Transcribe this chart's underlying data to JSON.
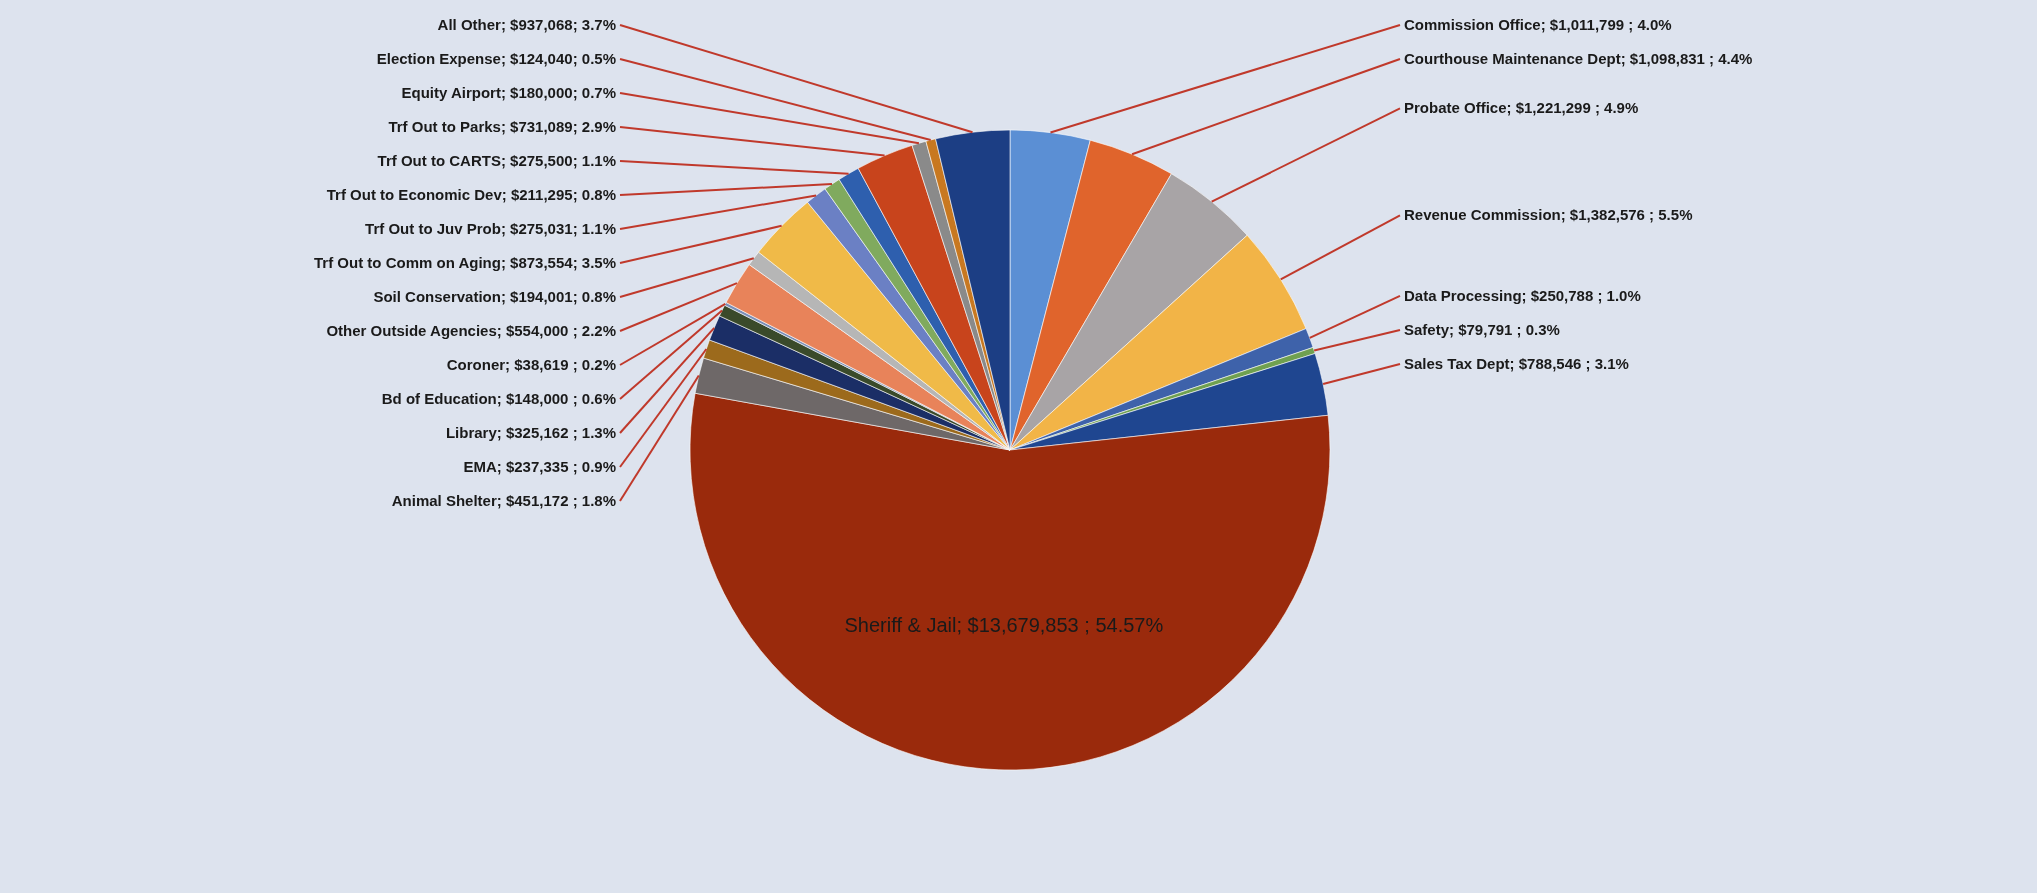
{
  "chart_data": {
    "type": "pie",
    "categories": [
      "Commission Office",
      "Courthouse Maintenance Dept",
      "Probate Office",
      "Revenue Commission",
      "Data Processing",
      "Safety",
      "Sales Tax Dept",
      "Sheriff & Jail",
      "Animal Shelter",
      "EMA",
      "Library",
      "Bd of Education",
      "Coroner",
      "Other Outside Agencies",
      "Soil Conservation",
      "Trf Out to Comm on Aging",
      "Trf Out to Juv Prob",
      "Trf Out to Economic Dev",
      "Trf Out to CARTS",
      "Trf Out to Parks",
      "Equity Airport",
      "Election Expense",
      "All Other"
    ],
    "values": [
      1011799,
      1098831,
      1221299,
      1382576,
      250788,
      79791,
      788546,
      13679853,
      451172,
      237335,
      325162,
      148000,
      38619,
      554000,
      194001,
      873554,
      275031,
      211295,
      275500,
      731089,
      180000,
      124040,
      937068
    ],
    "value_labels": [
      "$1,011,799 ; 4.0%",
      "$1,098,831 ; 4.4%",
      "$1,221,299 ; 4.9%",
      "$1,382,576 ; 5.5%",
      "$250,788 ; 1.0%",
      "$79,791 ; 0.3%",
      "$788,546 ; 3.1%",
      "$13,679,853 ;  54.57%",
      "$451,172 ; 1.8%",
      "$237,335 ; 0.9%",
      "$325,162 ; 1.3%",
      "$148,000 ; 0.6%",
      "$38,619 ; 0.2%",
      "$554,000 ; 2.2%",
      "$194,001; 0.8%",
      "$873,554; 3.5%",
      "$275,031; 1.1%",
      "$211,295; 0.8%",
      "$275,500; 1.1%",
      "$731,089; 2.9%",
      "$180,000; 0.7%",
      "$124,040; 0.5%",
      "$937,068; 3.7%"
    ],
    "colors": [
      "#5b8fd4",
      "#e0642c",
      "#a8a4a6",
      "#f2b447",
      "#3e62aa",
      "#6fa050",
      "#1f4690",
      "#9a2a0c",
      "#6e6868",
      "#9c6a1c",
      "#1b2e66",
      "#3a4a2a",
      "#7a8fb8",
      "#e8835a",
      "#b6b6b6",
      "#f0ba48",
      "#6b80c4",
      "#80aa5e",
      "#2e5fae",
      "#c8441c",
      "#8a8a8a",
      "#c87820",
      "#1c3e84"
    ]
  }
}
